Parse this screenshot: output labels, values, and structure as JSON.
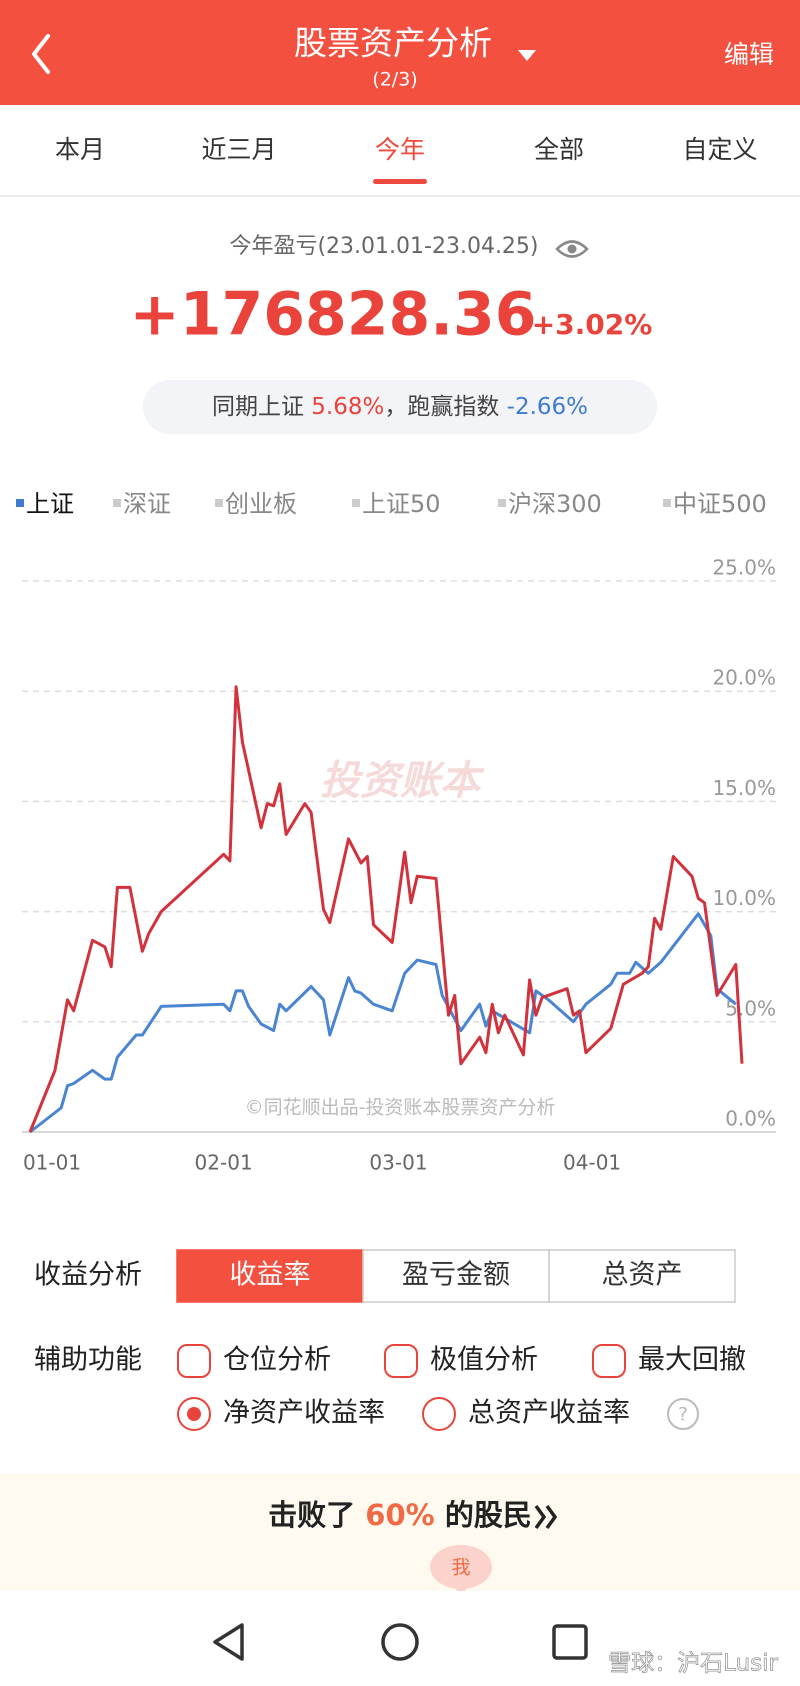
{
  "header": {
    "title": "股票资产分析",
    "subtitle": "(2/3)",
    "action": "编辑"
  },
  "period_tabs": [
    "本月",
    "近三月",
    "今年",
    "全部",
    "自定义"
  ],
  "summary": {
    "label": "今年盈亏(23.01.01-23.04.25)",
    "amount": "+176828.36",
    "percent": "+3.02%",
    "compare_label": "同期上证",
    "compare_value": "5.68%",
    "excess_label": "，跑赢指数",
    "excess_value": "-2.66%"
  },
  "index_tabs": [
    "上证",
    "深证",
    "创业板",
    "上证50",
    "沪深300",
    "中证500"
  ],
  "chart_data": {
    "type": "line",
    "watermark": "投资账本",
    "source_note": "©同花顺出品-投资账本股票资产分析",
    "xlim": [
      0,
      114
    ],
    "xticks": [
      {
        "value": 0,
        "label": "01-01"
      },
      {
        "value": 31,
        "label": "02-01"
      },
      {
        "value": 59,
        "label": "03-01"
      },
      {
        "value": 90,
        "label": "04-01"
      }
    ],
    "ylim": [
      0,
      25
    ],
    "yticks": [
      {
        "value": 0,
        "label": "0.0%"
      },
      {
        "value": 5,
        "label": "5.0%"
      },
      {
        "value": 10,
        "label": "10.0%"
      },
      {
        "value": 15,
        "label": "15.0%"
      },
      {
        "value": 20,
        "label": "20.0%"
      },
      {
        "value": 25,
        "label": "25.0%"
      }
    ],
    "grid": true,
    "series": [
      {
        "color": "#d2323c",
        "x": [
          0,
          4,
          6,
          7,
          10,
          12,
          13,
          14,
          16,
          18,
          19,
          21,
          31,
          32,
          33,
          34,
          37,
          38,
          39,
          40,
          41,
          44,
          45,
          47,
          48,
          51,
          53,
          54,
          55,
          58,
          60,
          61,
          62,
          65,
          67,
          68,
          69,
          72,
          73,
          74,
          75,
          76,
          79,
          80,
          81,
          82,
          86,
          87,
          88,
          89,
          93,
          95,
          98,
          99,
          100,
          101,
          103,
          106,
          107,
          108,
          110,
          113,
          114
        ],
        "values": [
          0.0,
          2.8,
          6.0,
          5.5,
          8.7,
          8.4,
          7.5,
          11.1,
          11.1,
          8.2,
          9.0,
          10.0,
          12.6,
          12.3,
          20.2,
          17.7,
          13.8,
          14.9,
          14.8,
          15.8,
          13.5,
          14.9,
          14.5,
          10.1,
          9.5,
          13.3,
          12.2,
          12.5,
          9.4,
          8.6,
          12.7,
          10.4,
          11.6,
          11.5,
          5.3,
          6.2,
          3.1,
          4.3,
          3.6,
          5.8,
          4.5,
          5.3,
          3.5,
          6.9,
          5.3,
          6.1,
          6.5,
          5.3,
          5.5,
          3.6,
          4.7,
          6.7,
          7.2,
          7.5,
          9.7,
          9.2,
          12.5,
          11.6,
          10.6,
          10.4,
          6.2,
          7.6,
          3.1
        ]
      },
      {
        "color": "#4a85d2",
        "x": [
          0,
          5,
          6,
          7,
          10,
          12,
          13,
          14,
          17,
          18,
          21,
          31,
          32,
          33,
          34,
          35,
          37,
          39,
          40,
          41,
          45,
          47,
          48,
          51,
          52,
          53,
          55,
          58,
          60,
          62,
          65,
          66,
          69,
          72,
          73,
          74,
          77,
          80,
          81,
          83,
          87,
          89,
          93,
          94,
          96,
          97,
          99,
          101,
          107,
          109,
          110,
          113
        ],
        "values": [
          0.0,
          1.1,
          2.1,
          2.2,
          2.8,
          2.4,
          2.4,
          3.4,
          4.4,
          4.4,
          5.7,
          5.8,
          5.5,
          6.4,
          6.4,
          5.7,
          4.9,
          4.6,
          5.8,
          5.5,
          6.6,
          6.0,
          4.4,
          7.0,
          6.4,
          6.3,
          5.8,
          5.5,
          7.2,
          7.8,
          7.6,
          6.2,
          4.6,
          5.8,
          4.8,
          5.5,
          5.0,
          4.5,
          6.4,
          6.0,
          5.0,
          5.8,
          6.7,
          7.2,
          7.2,
          7.7,
          7.2,
          7.7,
          9.9,
          8.9,
          6.5,
          5.8
        ]
      }
    ]
  },
  "analysis": {
    "label": "收益分析",
    "options": [
      "收益率",
      "盈亏金额",
      "总资产"
    ]
  },
  "aux": {
    "label": "辅助功能",
    "checkboxes": [
      "仓位分析",
      "极值分析",
      "最大回撤"
    ],
    "radios": [
      "净资产收益率",
      "总资产收益率"
    ],
    "help": "?"
  },
  "banner": {
    "prefix": "击败了",
    "value": "60%",
    "suffix": "的股民",
    "badge": "我"
  },
  "overlay": "雪球：沪石Lusir"
}
